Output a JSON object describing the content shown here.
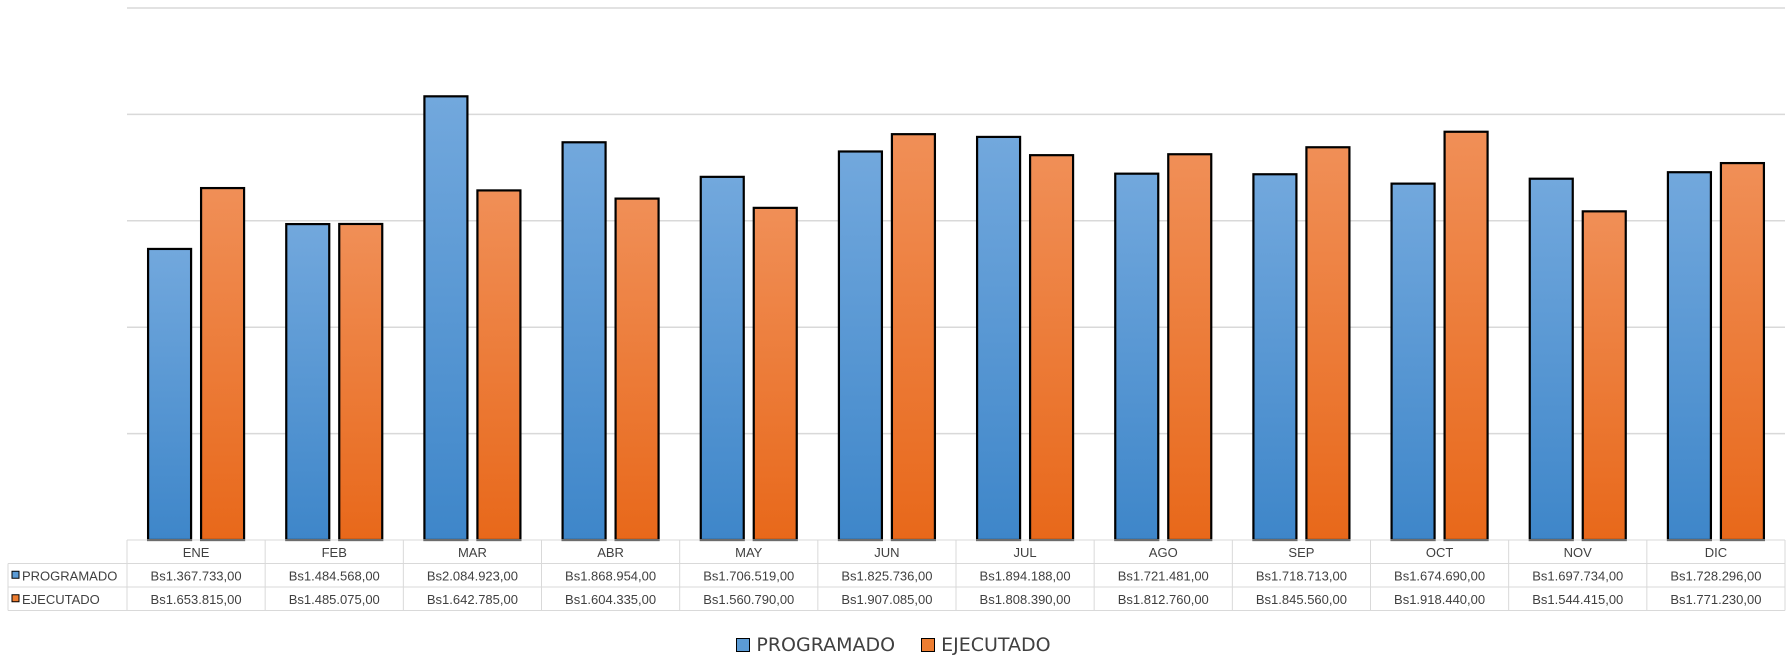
{
  "chart_data": {
    "type": "bar",
    "categories": [
      "ENE",
      "FEB",
      "MAR",
      "ABR",
      "MAY",
      "JUN",
      "JUL",
      "AGO",
      "SEP",
      "OCT",
      "NOV",
      "DIC"
    ],
    "series": [
      {
        "name": "PROGRAMADO",
        "color": "#5b9bd5",
        "values": [
          1367733,
          1484568,
          2084923,
          1868954,
          1706519,
          1825736,
          1894188,
          1721481,
          1718713,
          1674690,
          1697734,
          1728296
        ],
        "labels": [
          "Bs1.367.733,00",
          "Bs1.484.568,00",
          "Bs2.084.923,00",
          "Bs1.868.954,00",
          "Bs1.706.519,00",
          "Bs1.825.736,00",
          "Bs1.894.188,00",
          "Bs1.721.481,00",
          "Bs1.718.713,00",
          "Bs1.674.690,00",
          "Bs1.697.734,00",
          "Bs1.728.296,00"
        ]
      },
      {
        "name": "EJECUTADO",
        "color": "#ed7d31",
        "values": [
          1653815,
          1485075,
          1642785,
          1604335,
          1560790,
          1907085,
          1808390,
          1812760,
          1845560,
          1918440,
          1544415,
          1771230
        ],
        "labels": [
          "Bs1.653.815,00",
          "Bs1.485.075,00",
          "Bs1.642.785,00",
          "Bs1.604.335,00",
          "Bs1.560.790,00",
          "Bs1.907.085,00",
          "Bs1.808.390,00",
          "Bs1.812.760,00",
          "Bs1.845.560,00",
          "Bs1.918.440,00",
          "Bs1.544.415,00",
          "Bs1.771.230,00"
        ]
      }
    ],
    "ylim": [
      0,
      2500000
    ],
    "grid": true,
    "data_table": true,
    "legend_position": "bottom"
  }
}
